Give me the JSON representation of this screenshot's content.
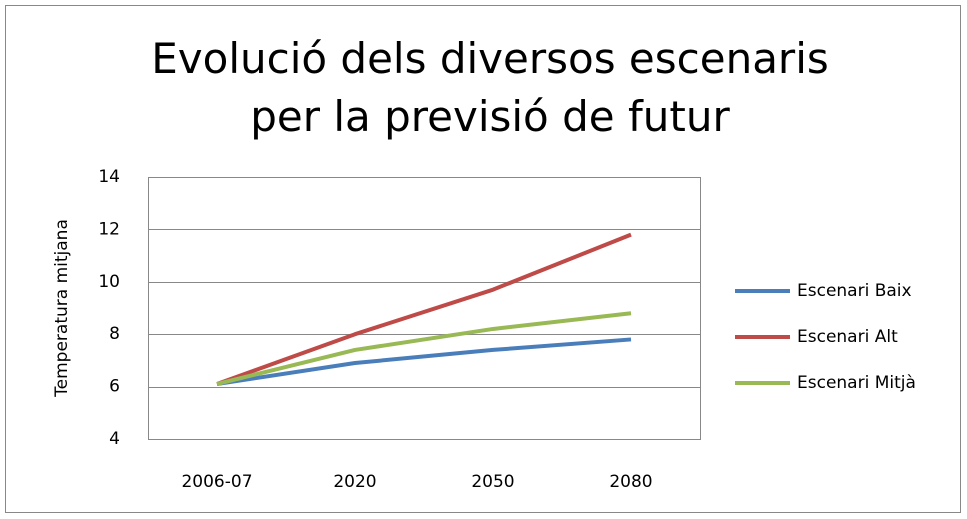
{
  "chart_data": {
    "type": "line",
    "title": "Evolució dels diversos escenaris per la previsió de futur",
    "y_label": "Temperatura mitjana",
    "categories": [
      "2006-07",
      "2020",
      "2050",
      "2080"
    ],
    "series": [
      {
        "name": "Escenari Baix",
        "color": "#4a7ebb",
        "values": [
          6.1,
          6.9,
          7.4,
          7.8
        ]
      },
      {
        "name": "Escenari Alt",
        "color": "#be4b48",
        "values": [
          6.1,
          8.0,
          9.7,
          11.8
        ]
      },
      {
        "name": "Escenari Mitjà",
        "color": "#98b954",
        "values": [
          6.1,
          7.4,
          8.2,
          8.8
        ]
      }
    ],
    "ylim": [
      4,
      14
    ],
    "yticks": [
      4,
      6,
      8,
      10,
      12,
      14
    ],
    "grid": true,
    "legend": "right"
  }
}
